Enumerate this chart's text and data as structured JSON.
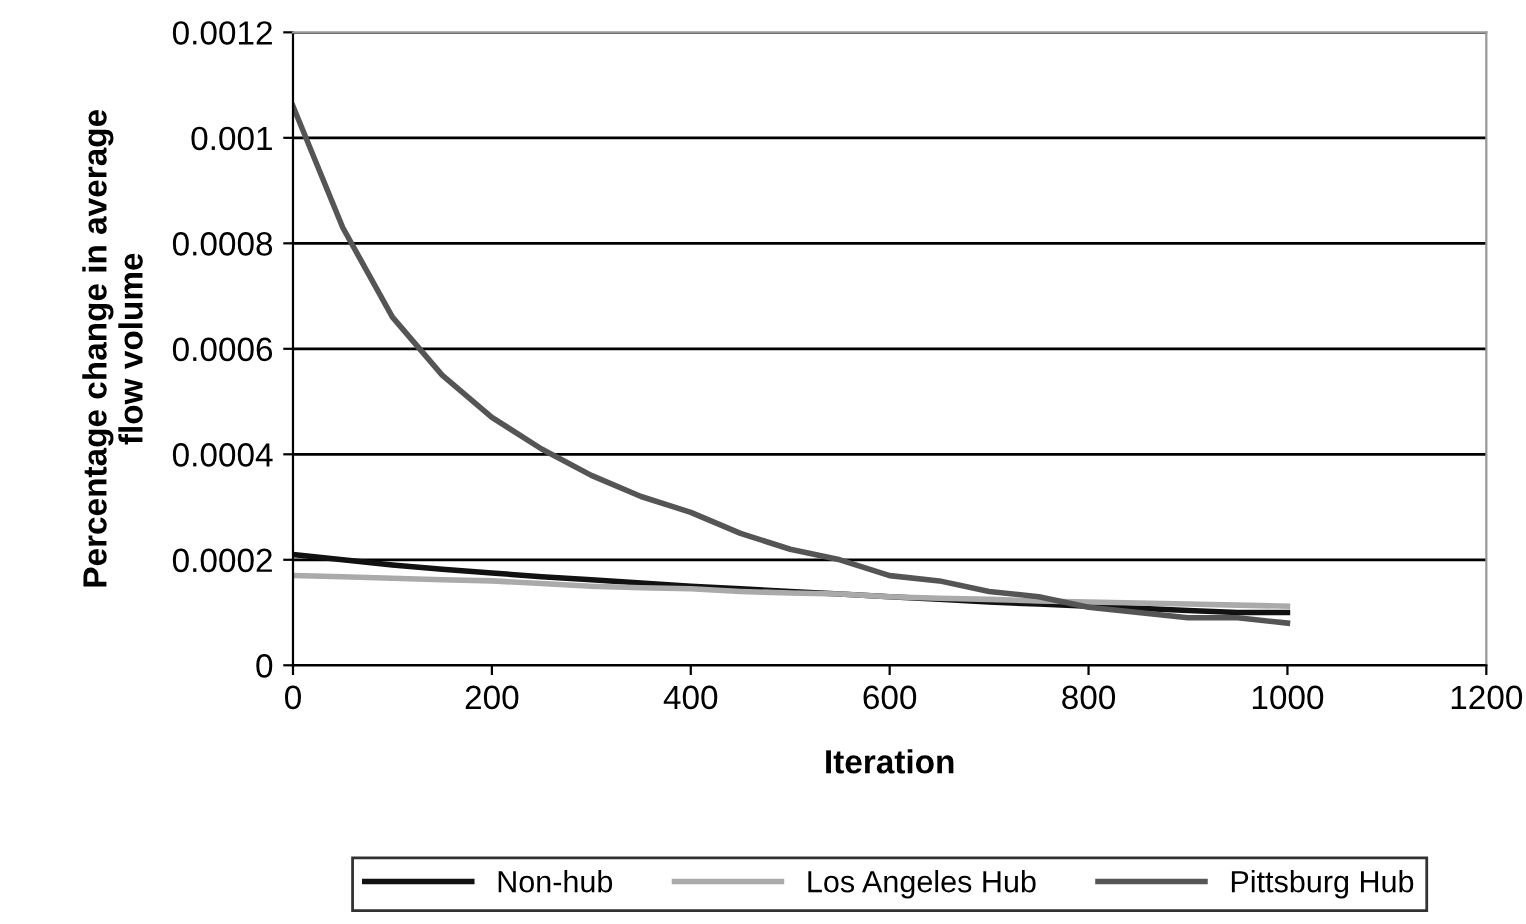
{
  "chart_data": {
    "type": "line",
    "xlabel": "Iteration",
    "ylabel": "Percentage change in average\nflow volume",
    "xlim": [
      0,
      1200
    ],
    "xticks": [
      0,
      200,
      400,
      600,
      800,
      1000,
      1200
    ],
    "ylim": [
      0,
      0.0012
    ],
    "yticks": [
      {
        "value": 0,
        "label": "0"
      },
      {
        "value": 0.0002,
        "label": "0.0002"
      },
      {
        "value": 0.0004,
        "label": "0.0004"
      },
      {
        "value": 0.0006,
        "label": "0.0006"
      },
      {
        "value": 0.0008,
        "label": "0.0008"
      },
      {
        "value": 0.001,
        "label": "0.001"
      },
      {
        "value": 0.0012,
        "label": "0.0012"
      }
    ],
    "grid": "y",
    "legend": "bottom",
    "marker": "none",
    "x": [
      0,
      50,
      100,
      150,
      200,
      250,
      300,
      350,
      400,
      450,
      500,
      550,
      600,
      650,
      700,
      750,
      800,
      850,
      900,
      950,
      1000
    ],
    "series": [
      {
        "name": "Non-hub",
        "color": "#111111",
        "line_style": "solid",
        "values": [
          0.00021,
          0.0002,
          0.00019,
          0.000182,
          0.000175,
          0.000168,
          0.000162,
          0.000156,
          0.00015,
          0.000145,
          0.00014,
          0.000135,
          0.00013,
          0.000125,
          0.00012,
          0.000116,
          0.000112,
          0.000108,
          0.000104,
          0.0001,
          0.0001
        ]
      },
      {
        "name": "Los Angeles Hub",
        "color": "#aaaaaa",
        "line_style": "solid",
        "values": [
          0.00017,
          0.000168,
          0.000165,
          0.000162,
          0.00016,
          0.000155,
          0.00015,
          0.000147,
          0.000145,
          0.00014,
          0.000137,
          0.000135,
          0.00013,
          0.000127,
          0.000125,
          0.000122,
          0.00012,
          0.000118,
          0.000116,
          0.000114,
          0.000112
        ]
      },
      {
        "name": "Pittsburg Hub",
        "color": "#555555",
        "line_style": "solid",
        "values": [
          0.00106,
          0.00083,
          0.00066,
          0.00055,
          0.00047,
          0.00041,
          0.00036,
          0.00032,
          0.00029,
          0.00025,
          0.00022,
          0.0002,
          0.00017,
          0.00016,
          0.00014,
          0.00013,
          0.00011,
          0.0001,
          9e-05,
          9e-05,
          8e-05
        ]
      }
    ]
  }
}
